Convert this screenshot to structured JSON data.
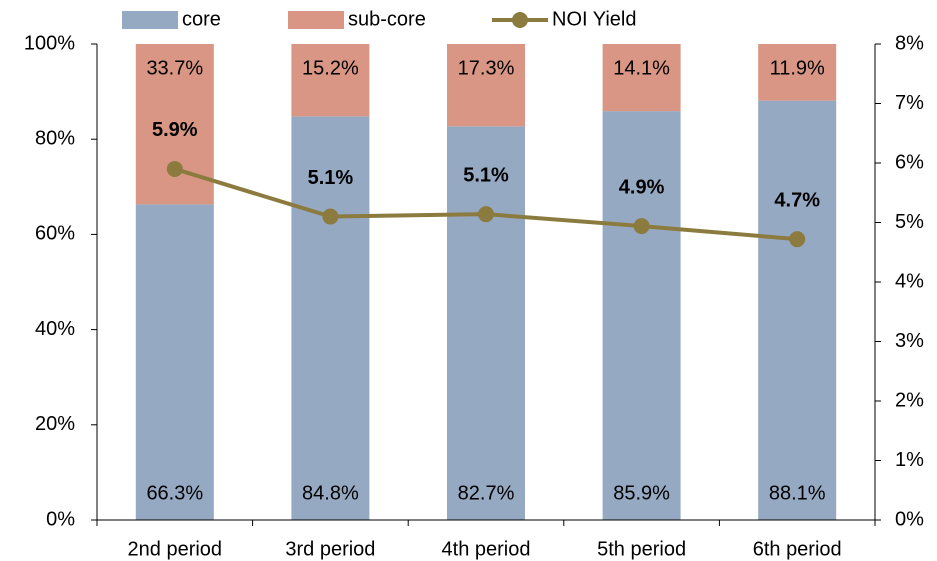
{
  "chart_data": {
    "type": "bar",
    "stacked": true,
    "categories": [
      "2nd period",
      "3rd period",
      "4th period",
      "5th period",
      "6th period"
    ],
    "series": [
      {
        "name": "core",
        "type": "bar",
        "color": "#96a9c2",
        "values": [
          66.3,
          84.8,
          82.7,
          85.9,
          88.1
        ],
        "value_labels": [
          "66.3%",
          "84.8%",
          "82.7%",
          "85.9%",
          "88.1%"
        ]
      },
      {
        "name": "sub-core",
        "type": "bar",
        "color": "#d99684",
        "values": [
          33.7,
          15.2,
          17.3,
          14.1,
          11.9
        ],
        "value_labels": [
          "33.7%",
          "15.2%",
          "17.3%",
          "14.1%",
          "11.9%"
        ]
      },
      {
        "name": "NOI Yield",
        "type": "line",
        "axis": "y2",
        "color": "#8c7b3f",
        "values": [
          5.9,
          5.1,
          5.14,
          4.94,
          4.72
        ],
        "value_labels": [
          "5.9%",
          "5.1%",
          "5.1%",
          "4.9%",
          "4.7%"
        ]
      }
    ],
    "ylim": [
      0,
      100
    ],
    "yticks": [
      {
        "value": 0,
        "label": "0%"
      },
      {
        "value": 20,
        "label": "20%"
      },
      {
        "value": 40,
        "label": "40%"
      },
      {
        "value": 60,
        "label": "60%"
      },
      {
        "value": 80,
        "label": "80%"
      },
      {
        "value": 100,
        "label": "100%"
      }
    ],
    "y2lim": [
      0,
      8
    ],
    "y2ticks": [
      {
        "value": 0,
        "label": "0%"
      },
      {
        "value": 1,
        "label": "1%"
      },
      {
        "value": 2,
        "label": "2%"
      },
      {
        "value": 3,
        "label": "3%"
      },
      {
        "value": 4,
        "label": "4%"
      },
      {
        "value": 5,
        "label": "5%"
      },
      {
        "value": 6,
        "label": "6%"
      },
      {
        "value": 7,
        "label": "7%"
      },
      {
        "value": 8,
        "label": "8%"
      }
    ],
    "grid": false,
    "legend": "top"
  }
}
